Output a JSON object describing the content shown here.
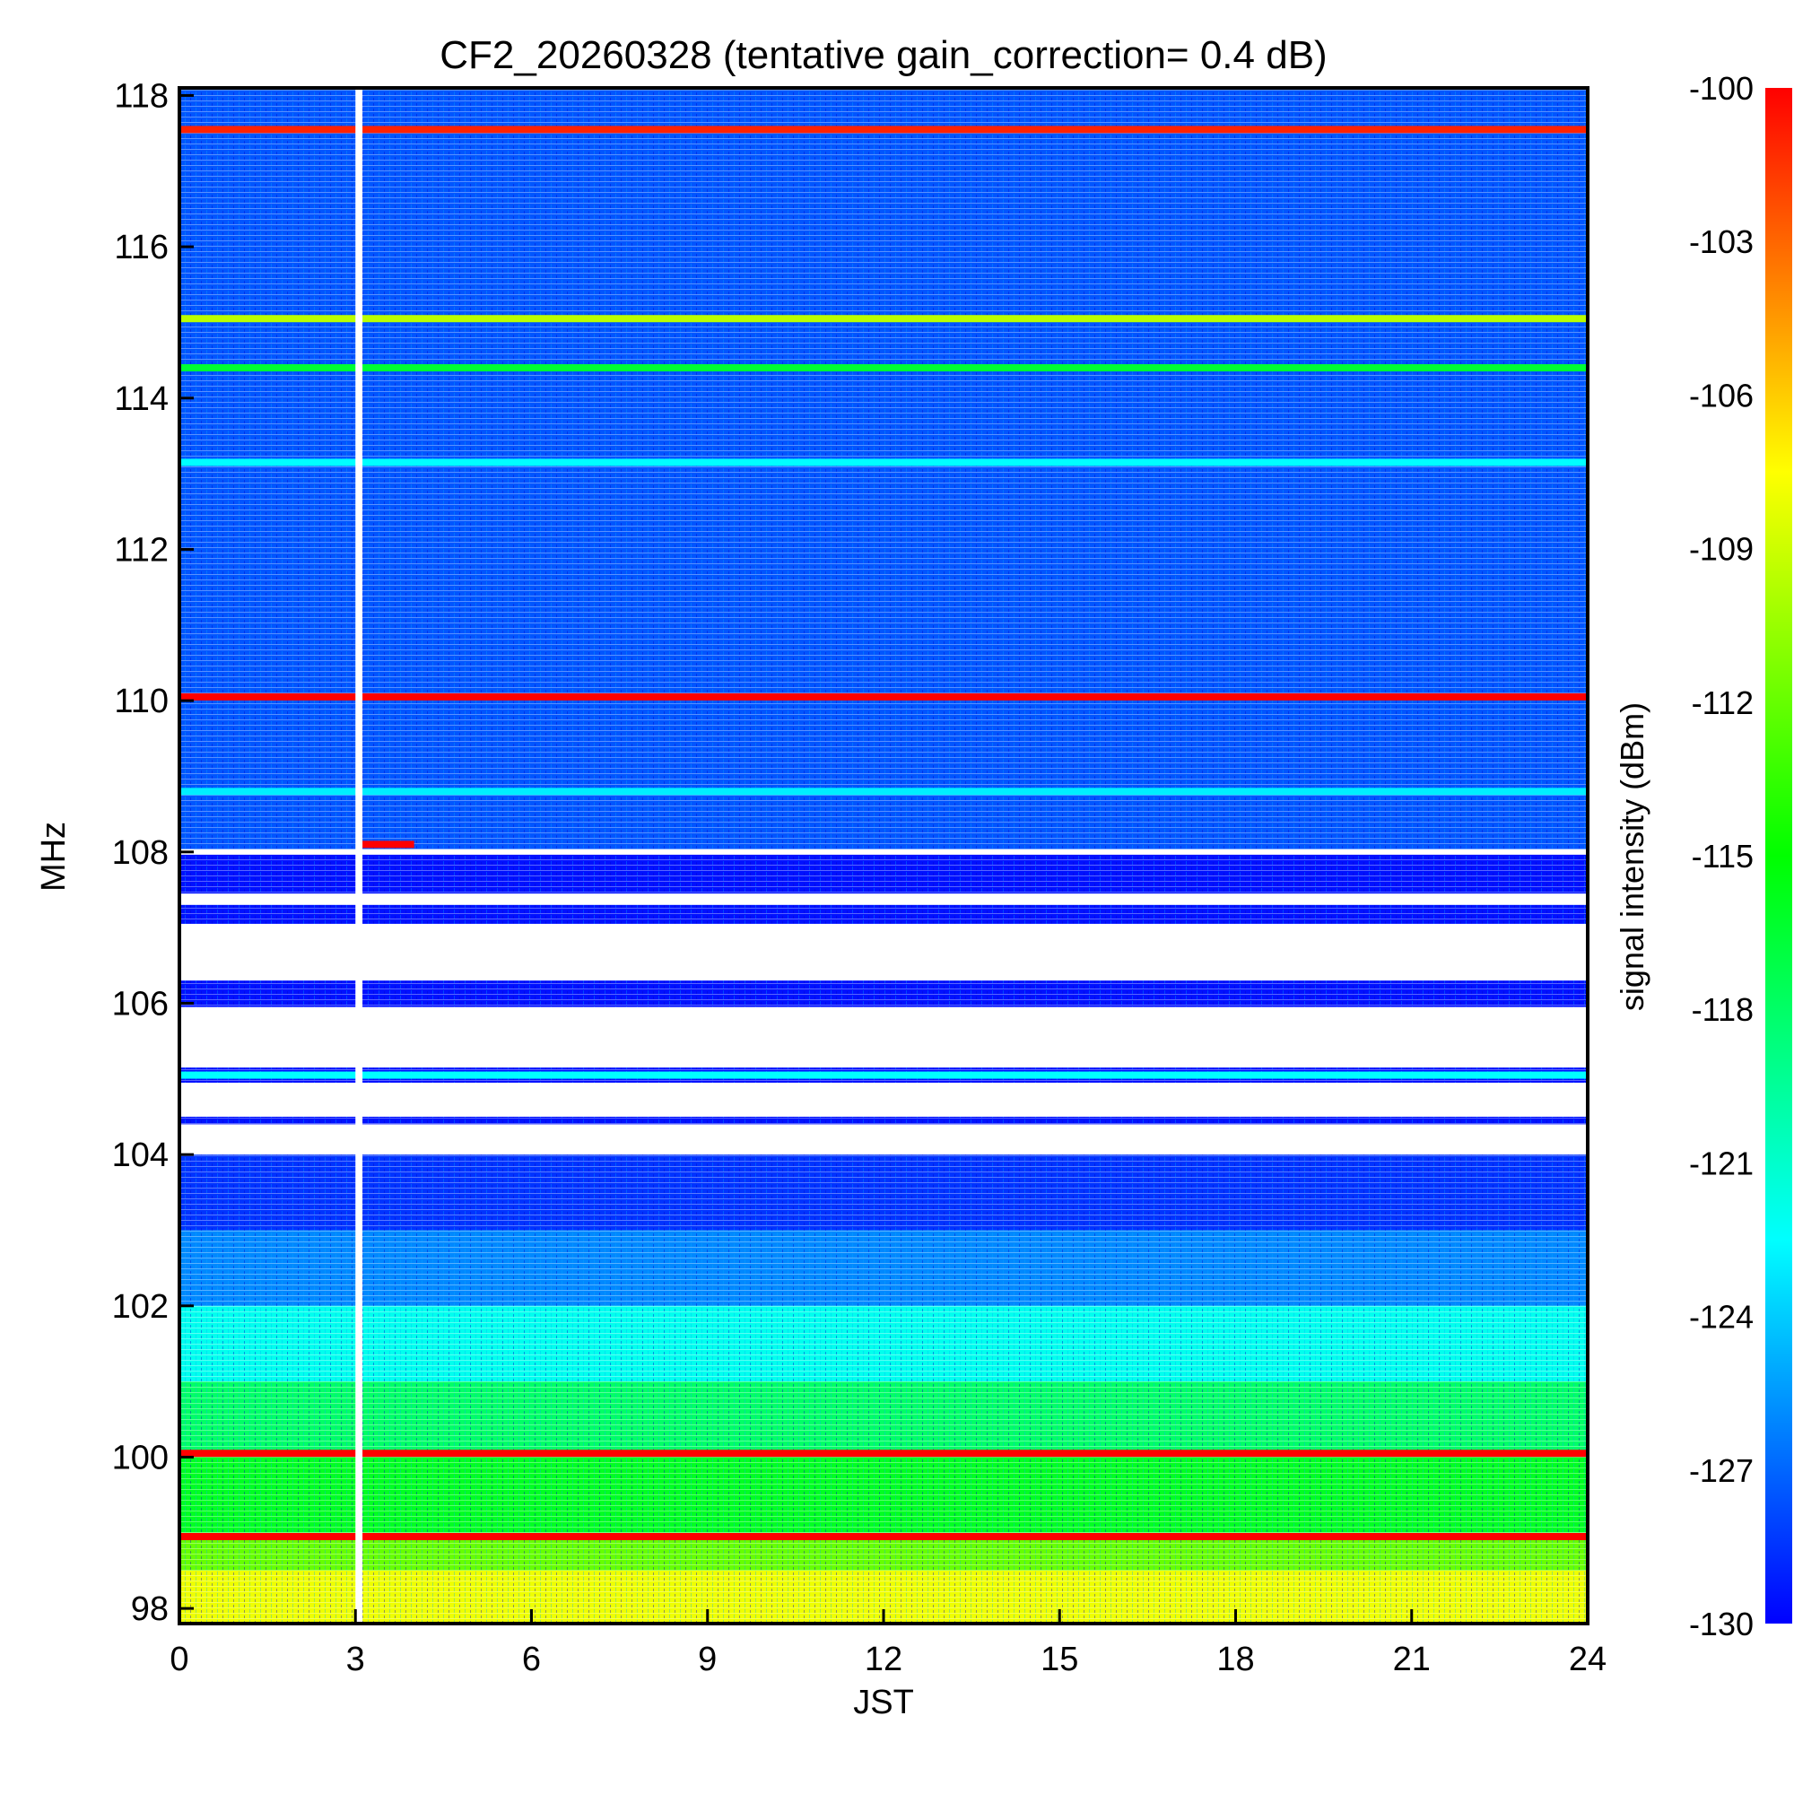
{
  "chart_data": {
    "type": "heatmap",
    "title": "CF2_20260328 (tentative gain_correction=  0.4 dB)",
    "xlabel": "JST",
    "ylabel": "MHz",
    "xlim": [
      0,
      24
    ],
    "ylim": [
      97.8,
      118.1
    ],
    "x_ticks": [
      "0",
      "3",
      "6",
      "9",
      "12",
      "15",
      "18",
      "21",
      "24"
    ],
    "y_ticks": [
      "98",
      "100",
      "102",
      "104",
      "106",
      "108",
      "110",
      "112",
      "114",
      "116",
      "118"
    ],
    "colorbar": {
      "label": "signal intensity (dBm)",
      "range": [
        -130,
        -100
      ],
      "ticks": [
        "-100",
        "-103",
        "-106",
        "-109",
        "-112",
        "-115",
        "-118",
        "-121",
        "-124",
        "-127",
        "-130"
      ]
    },
    "data_gap": {
      "x_start": 3.0,
      "x_end": 3.12
    },
    "colors": {
      "low": "#0000ff",
      "mid_low": "#00ffff",
      "mid": "#00ff00",
      "mid_high": "#ffff00",
      "high": "#ff0000"
    },
    "series": [
      {
        "name": "background",
        "levels": [
          {
            "from": 108.0,
            "to": 118.1,
            "dbm": -127.5
          },
          {
            "from": 104.0,
            "to": 108.0,
            "dbm": -129.5
          },
          {
            "from": 103.0,
            "to": 104.0,
            "dbm": -128.5
          },
          {
            "from": 102.0,
            "to": 103.0,
            "dbm": -126.0
          },
          {
            "from": 101.0,
            "to": 102.0,
            "dbm": -122.0
          },
          {
            "from": 100.0,
            "to": 101.0,
            "dbm": -118.0
          },
          {
            "from": 99.0,
            "to": 100.0,
            "dbm": -116.0
          },
          {
            "from": 98.5,
            "to": 99.0,
            "dbm": -112.0
          },
          {
            "from": 97.8,
            "to": 98.5,
            "dbm": -108.0
          }
        ]
      },
      {
        "name": "carriers",
        "lines": [
          {
            "mhz": 117.55,
            "dbm": -101.0,
            "x_start": 0,
            "x_end": 24
          },
          {
            "mhz": 115.05,
            "dbm": -109.5,
            "x_start": 0,
            "x_end": 24
          },
          {
            "mhz": 114.4,
            "dbm": -116.5,
            "x_start": 0,
            "x_end": 24
          },
          {
            "mhz": 113.15,
            "dbm": -122.5,
            "x_start": 0,
            "x_end": 24
          },
          {
            "mhz": 110.05,
            "dbm": -100.0,
            "x_start": 0,
            "x_end": 24
          },
          {
            "mhz": 108.8,
            "dbm": -123.0,
            "x_start": 0,
            "x_end": 24
          },
          {
            "mhz": 108.1,
            "dbm": -100.0,
            "x_start": 3.1,
            "x_end": 4.0
          },
          {
            "mhz": 105.05,
            "dbm": -122.5,
            "x_start": 0,
            "x_end": 24
          },
          {
            "mhz": 100.05,
            "dbm": -100.0,
            "x_start": 0,
            "x_end": 24
          },
          {
            "mhz": 98.95,
            "dbm": -100.0,
            "x_start": 0,
            "x_end": 24
          }
        ]
      },
      {
        "name": "white_regions",
        "bands": [
          {
            "from": 107.3,
            "to": 107.45,
            "x_start": 0,
            "x_end": 24
          },
          {
            "from": 106.3,
            "to": 107.05,
            "x_start": 0,
            "x_end": 24
          },
          {
            "from": 105.15,
            "to": 105.95,
            "x_start": 0,
            "x_end": 24
          },
          {
            "from": 104.5,
            "to": 104.95,
            "x_start": 0,
            "x_end": 24
          },
          {
            "from": 104.0,
            "to": 104.4,
            "x_start": 0,
            "x_end": 24
          }
        ]
      }
    ]
  }
}
